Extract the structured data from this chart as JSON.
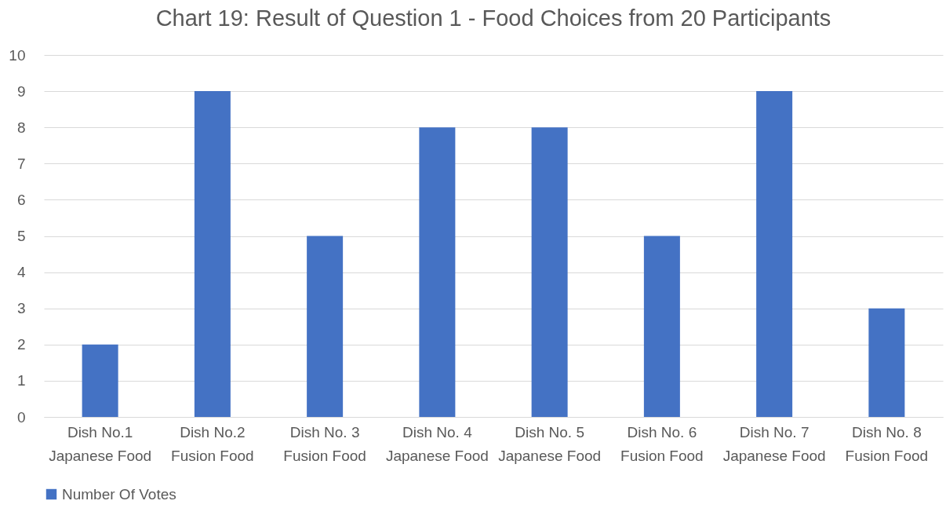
{
  "chart_data": {
    "type": "bar",
    "title": "Chart 19: Result of Question 1 - Food Choices from 20 Participants",
    "categories": [
      "Dish No.1\nJapanese Food",
      "Dish No.2\nFusion Food",
      "Dish No. 3\nFusion Food",
      "Dish No. 4\nJapanese Food",
      "Dish No. 5\nJapanese Food",
      "Dish No. 6\nFusion Food",
      "Dish No. 7\nJapanese Food",
      "Dish No. 8\nFusion Food"
    ],
    "series": [
      {
        "name": "Number Of Votes",
        "color": "#4472c4",
        "values": [
          2,
          9,
          5,
          8,
          8,
          5,
          9,
          3
        ]
      }
    ],
    "ylim": [
      0,
      10
    ],
    "yticks": [
      0,
      1,
      2,
      3,
      4,
      5,
      6,
      7,
      8,
      9,
      10
    ],
    "grid": "y",
    "legend": "bottom"
  }
}
